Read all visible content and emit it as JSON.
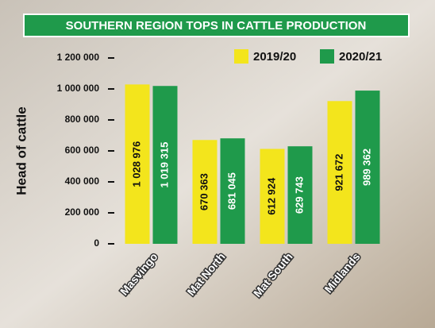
{
  "chart_data": {
    "type": "bar",
    "title": "SOUTHERN REGION TOPS IN CATTLE PRODUCTION",
    "y_label": "Head of cattle",
    "categories": [
      "Masvingo",
      "Mat North",
      "Mat South",
      "Midlands"
    ],
    "series": [
      {
        "name": "2019/20",
        "color": "#f3e51c",
        "values": [
          1028976,
          670363,
          612924,
          921672
        ],
        "value_labels": [
          "1 028 976",
          "670 363",
          "612 924",
          "921 672"
        ]
      },
      {
        "name": "2020/21",
        "color": "#1f9a4b",
        "values": [
          1019315,
          681045,
          629743,
          989362
        ],
        "value_labels": [
          "1 019 315",
          "681 045",
          "629 743",
          "989 362"
        ]
      }
    ],
    "ylim": [
      0,
      1200000
    ],
    "yticks": [
      0,
      {
        "value": 200000,
        "label": "200 000"
      },
      {
        "value": 400000,
        "label": "400 000"
      },
      {
        "value": 600000,
        "label": "600 000"
      },
      {
        "value": 800000,
        "label": "800 000"
      },
      {
        "value": 1000000,
        "label": "1 000 000"
      },
      {
        "value": 1200000,
        "label": "1 200 000"
      }
    ]
  }
}
